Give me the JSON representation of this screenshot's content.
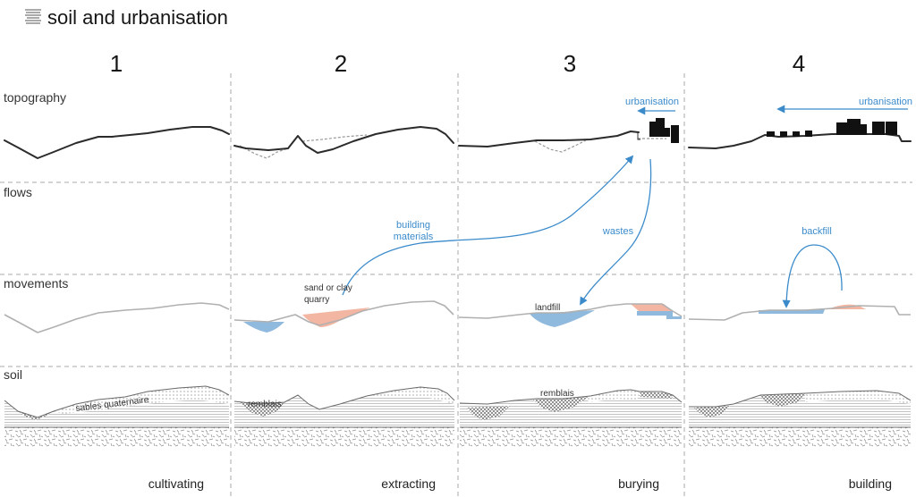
{
  "title": {
    "text": "soil and urbanisation",
    "icon": "soil-layers-icon"
  },
  "columns": [
    {
      "number": "1",
      "stage": "cultivating"
    },
    {
      "number": "2",
      "stage": "extracting"
    },
    {
      "number": "3",
      "stage": "burying"
    },
    {
      "number": "4",
      "stage": "building"
    }
  ],
  "rows": [
    {
      "label": "topography"
    },
    {
      "label": "flows"
    },
    {
      "label": "movements"
    },
    {
      "label": "soil"
    }
  ],
  "annotations": {
    "urbanisation_col3": "urbanisation",
    "urbanisation_col4": "urbanisation",
    "building_materials": [
      "building",
      "materials"
    ],
    "wastes": "wastes",
    "backfill": "backfill",
    "quarry": [
      "sand or clay",
      "quarry"
    ],
    "landfill": "landfill",
    "remblais_col2": "remblais",
    "remblais_col3": "remblais",
    "sables": "sables quaternaire"
  },
  "colors": {
    "flow_arrow": "#3b8bcb",
    "extracted": "#f3b6a2",
    "filled": "#8fb9dd",
    "terrain": "#2b2b2b"
  }
}
